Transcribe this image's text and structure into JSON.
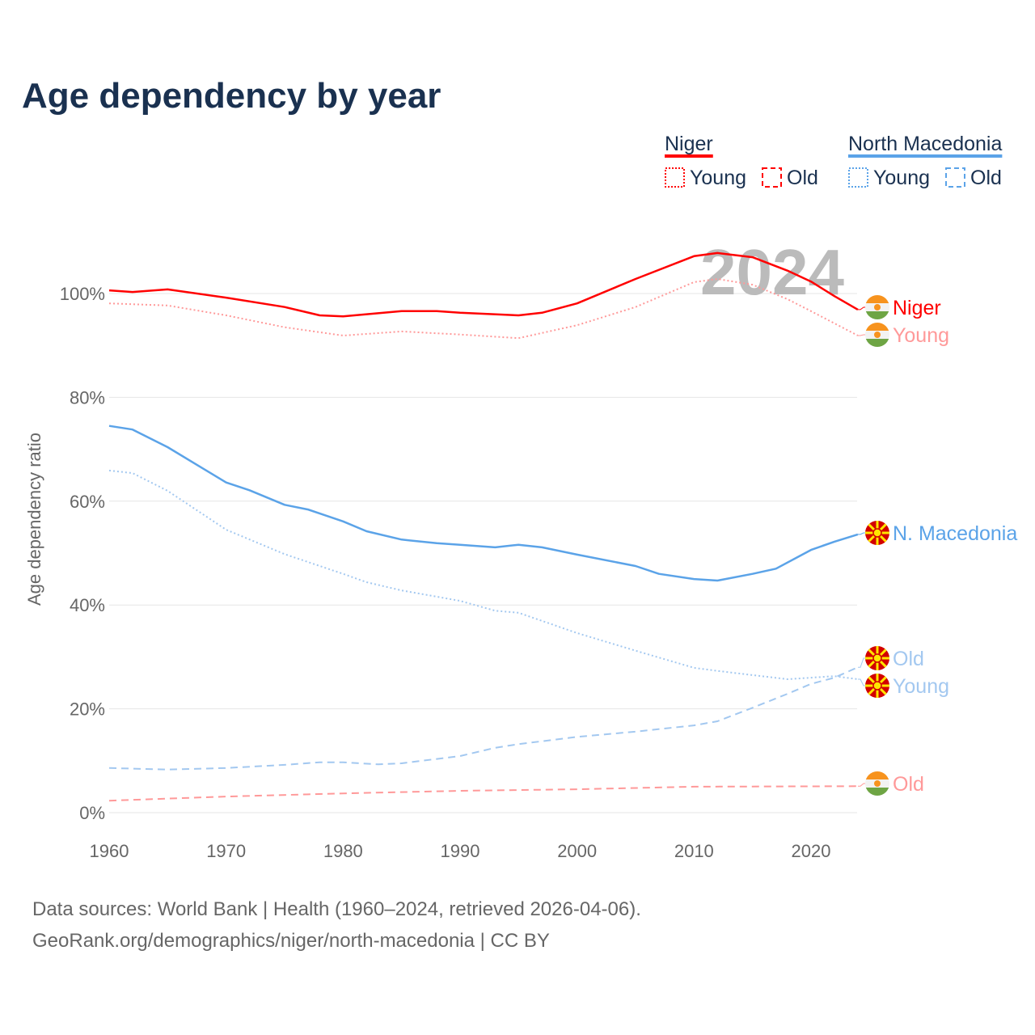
{
  "title": "Age dependency by year",
  "watermark_year": "2024",
  "footer": [
    "Data sources: World Bank | Health (1960–2024, retrieved 2026-04-06).",
    "GeoRank.org/demographics/niger/north-macedonia | CC BY"
  ],
  "legend": {
    "groups": [
      {
        "name": "Niger",
        "color": "#ff0000",
        "young": "Young",
        "old": "Old"
      },
      {
        "name": "North Macedonia",
        "color": "#5ba3e8",
        "young": "Young",
        "old": "Old"
      }
    ]
  },
  "chart_data": {
    "type": "line",
    "ylabel": "Age dependency ratio",
    "xlim": [
      1960,
      2024
    ],
    "ylim": [
      0,
      110
    ],
    "xticks": [
      1960,
      1970,
      1980,
      1990,
      2000,
      2010,
      2020
    ],
    "yticks": [
      0,
      20,
      40,
      60,
      80,
      100
    ],
    "ytick_labels": [
      "0%",
      "20%",
      "40%",
      "60%",
      "80%",
      "100%"
    ],
    "grid": true,
    "series": [
      {
        "name": "Niger",
        "end_label": "Niger",
        "flag": "niger",
        "color": "#ff0000",
        "style": "solid",
        "x": [
          1960,
          1962,
          1965,
          1970,
          1975,
          1978,
          1980,
          1985,
          1988,
          1990,
          1995,
          1997,
          2000,
          2005,
          2010,
          2012,
          2015,
          2018,
          2020,
          2022,
          2024
        ],
        "y": [
          100.6,
          100.3,
          100.8,
          99.2,
          97.4,
          95.8,
          95.6,
          96.6,
          96.6,
          96.3,
          95.8,
          96.3,
          98.1,
          102.8,
          107.2,
          107.8,
          107,
          104.4,
          102.3,
          99.5,
          96.9
        ]
      },
      {
        "name": "Niger Young",
        "end_label": "Young",
        "flag": "niger",
        "color": "#ff9999",
        "style": "dotted",
        "x": [
          1960,
          1965,
          1970,
          1975,
          1980,
          1985,
          1990,
          1995,
          2000,
          2005,
          2010,
          2012,
          2015,
          2018,
          2020,
          2024
        ],
        "y": [
          98.1,
          97.7,
          95.8,
          93.5,
          91.9,
          92.7,
          92.1,
          91.4,
          93.9,
          97.4,
          102.2,
          102.8,
          101.7,
          98.9,
          96.6,
          91.9
        ]
      },
      {
        "name": "Niger Old",
        "end_label": "Old",
        "flag": "niger",
        "color": "#ff9999",
        "style": "dashed",
        "x": [
          1960,
          1970,
          1980,
          1990,
          2000,
          2010,
          2024
        ],
        "y": [
          2.3,
          3.1,
          3.7,
          4.2,
          4.5,
          5.0,
          5.1
        ]
      },
      {
        "name": "North Macedonia",
        "end_label": "N. Macedonia",
        "flag": "mk",
        "color": "#5ba3e8",
        "style": "solid",
        "x": [
          1960,
          1962,
          1965,
          1970,
          1972,
          1975,
          1977,
          1980,
          1982,
          1985,
          1988,
          1990,
          1993,
          1995,
          1997,
          2000,
          2005,
          2007,
          2010,
          2012,
          2015,
          2017,
          2019,
          2020,
          2022,
          2024
        ],
        "y": [
          74.5,
          73.8,
          70.4,
          63.6,
          62.1,
          59.3,
          58.4,
          56.1,
          54.2,
          52.6,
          51.9,
          51.6,
          51.1,
          51.6,
          51.1,
          49.7,
          47.5,
          46,
          45,
          44.7,
          46,
          47,
          49.4,
          50.6,
          52.2,
          53.6
        ]
      },
      {
        "name": "North Macedonia Old",
        "end_label": "Old",
        "flag": "mk",
        "color": "#a3c8f0",
        "style": "dashed",
        "x": [
          1960,
          1965,
          1970,
          1975,
          1978,
          1980,
          1983,
          1985,
          1990,
          1993,
          1995,
          2000,
          2005,
          2010,
          2012,
          2015,
          2018,
          2020,
          2022,
          2024
        ],
        "y": [
          8.6,
          8.3,
          8.6,
          9.2,
          9.7,
          9.7,
          9.3,
          9.5,
          10.9,
          12.5,
          13.2,
          14.6,
          15.6,
          16.8,
          17.6,
          20.2,
          22.9,
          24.8,
          26,
          28
        ]
      },
      {
        "name": "North Macedonia Young",
        "end_label": "Young",
        "flag": "mk",
        "color": "#a3c8f0",
        "style": "dotted",
        "x": [
          1960,
          1962,
          1965,
          1970,
          1975,
          1980,
          1982,
          1985,
          1990,
          1993,
          1995,
          2000,
          2005,
          2010,
          2012,
          2015,
          2018,
          2020,
          2022,
          2024
        ],
        "y": [
          65.9,
          65.4,
          62,
          54.5,
          49.8,
          46,
          44.4,
          42.8,
          40.8,
          38.9,
          38.5,
          34.6,
          31.2,
          27.9,
          27.3,
          26.5,
          25.7,
          26,
          26.3,
          25.7
        ]
      }
    ]
  }
}
